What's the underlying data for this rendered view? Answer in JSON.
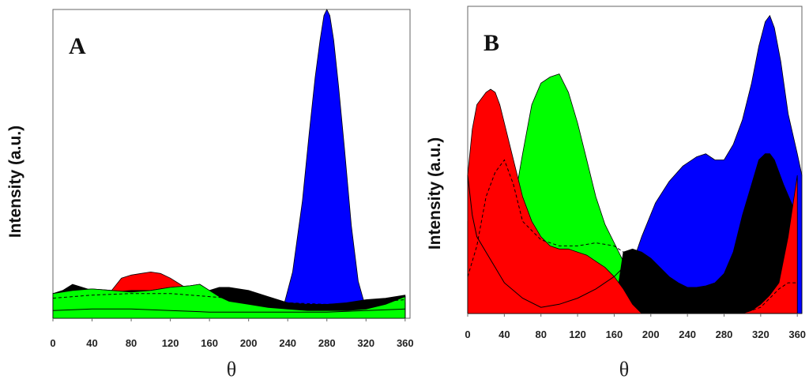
{
  "chart_data": [
    {
      "type": "area",
      "panel_label": "A",
      "xlabel": "θ",
      "ylabel": "Intensity (a.u.)",
      "xlim": [
        0,
        365
      ],
      "ylim": [
        0,
        1
      ],
      "x_ticks": [
        "0",
        "40",
        "80",
        "120",
        "160",
        "200",
        "240",
        "280",
        "320",
        "360"
      ],
      "colors": {
        "red": "#ff0000",
        "green": "#00ff00",
        "blue": "#0000ff",
        "black": "#000000"
      },
      "series": [
        {
          "color": "red",
          "style": "filled",
          "x": [
            0,
            30,
            50,
            60,
            70,
            80,
            90,
            100,
            110,
            120,
            130,
            140,
            150,
            160,
            170,
            180,
            200,
            220,
            240,
            260,
            280,
            300,
            320,
            340,
            360
          ],
          "y": [
            0.02,
            0.02,
            0.03,
            0.09,
            0.13,
            0.14,
            0.145,
            0.15,
            0.145,
            0.13,
            0.11,
            0.09,
            0.07,
            0.06,
            0.05,
            0.05,
            0.04,
            0.03,
            0.02,
            0.02,
            0.02,
            0.02,
            0.03,
            0.04,
            0.05
          ]
        },
        {
          "color": "blue",
          "style": "filled",
          "x": [
            0,
            220,
            235,
            245,
            255,
            262,
            268,
            273,
            277,
            280,
            283,
            287,
            292,
            298,
            305,
            312,
            320,
            330,
            360
          ],
          "y": [
            0.0,
            0.0,
            0.03,
            0.15,
            0.38,
            0.6,
            0.78,
            0.9,
            0.98,
            1.0,
            0.98,
            0.9,
            0.75,
            0.55,
            0.3,
            0.12,
            0.03,
            0.0,
            0.0
          ]
        },
        {
          "color": "green",
          "style": "filled",
          "x": [
            0,
            20,
            40,
            60,
            80,
            100,
            120,
            140,
            150,
            160,
            170,
            180,
            200,
            220,
            240,
            260,
            280,
            300,
            320,
            340,
            360
          ],
          "y": [
            0.08,
            0.09,
            0.095,
            0.09,
            0.085,
            0.09,
            0.1,
            0.105,
            0.11,
            0.09,
            0.07,
            0.055,
            0.045,
            0.035,
            0.03,
            0.025,
            0.025,
            0.025,
            0.03,
            0.045,
            0.07
          ]
        },
        {
          "color": "black",
          "style": "filled",
          "x": [
            0,
            10,
            20,
            30,
            40,
            60,
            80,
            100,
            120,
            140,
            160,
            170,
            180,
            200,
            220,
            240,
            260,
            280,
            300,
            320,
            340,
            360
          ],
          "y": [
            0.08,
            0.09,
            0.11,
            0.1,
            0.09,
            0.085,
            0.09,
            0.09,
            0.09,
            0.085,
            0.09,
            0.1,
            0.1,
            0.09,
            0.07,
            0.05,
            0.045,
            0.045,
            0.05,
            0.06,
            0.065,
            0.075
          ]
        },
        {
          "color": "green",
          "style": "refill",
          "x": [
            0,
            20,
            40,
            60,
            80,
            100,
            120,
            140,
            150,
            160,
            170,
            180,
            200,
            220,
            240,
            260,
            280,
            300,
            320,
            340,
            360
          ],
          "y": [
            0.08,
            0.09,
            0.095,
            0.09,
            0.085,
            0.09,
            0.1,
            0.105,
            0.11,
            0.09,
            0.07,
            0.055,
            0.045,
            0.035,
            0.03,
            0.025,
            0.025,
            0.025,
            0.03,
            0.045,
            0.07
          ]
        },
        {
          "color": "black",
          "style": "dashed",
          "x": [
            0,
            40,
            80,
            120,
            160,
            200,
            240,
            280,
            320,
            360
          ],
          "y": [
            0.065,
            0.075,
            0.08,
            0.08,
            0.07,
            0.06,
            0.05,
            0.045,
            0.05,
            0.06
          ]
        },
        {
          "color": "black",
          "style": "thin",
          "x": [
            0,
            40,
            80,
            120,
            160,
            200,
            240,
            280,
            320,
            360
          ],
          "y": [
            0.025,
            0.03,
            0.03,
            0.025,
            0.02,
            0.02,
            0.02,
            0.02,
            0.025,
            0.03
          ]
        }
      ]
    },
    {
      "type": "area",
      "panel_label": "B",
      "xlabel": "θ",
      "ylabel": "Intensity (a.u.)",
      "xlim": [
        0,
        365
      ],
      "ylim": [
        0,
        1
      ],
      "x_ticks": [
        "0",
        "40",
        "80",
        "120",
        "160",
        "200",
        "240",
        "280",
        "320",
        "360"
      ],
      "colors": {
        "red": "#ff0000",
        "green": "#00ff00",
        "blue": "#0000ff",
        "black": "#000000"
      },
      "series": [
        {
          "color": "blue",
          "style": "filled",
          "x": [
            0,
            160,
            175,
            190,
            205,
            220,
            235,
            250,
            260,
            270,
            280,
            290,
            300,
            310,
            318,
            325,
            330,
            335,
            342,
            350,
            360,
            365
          ],
          "y": [
            0.0,
            0.0,
            0.12,
            0.25,
            0.36,
            0.43,
            0.48,
            0.51,
            0.52,
            0.5,
            0.5,
            0.55,
            0.63,
            0.75,
            0.87,
            0.95,
            0.97,
            0.93,
            0.82,
            0.65,
            0.52,
            0.45
          ]
        },
        {
          "color": "green",
          "style": "filled",
          "x": [
            0,
            40,
            50,
            60,
            70,
            80,
            90,
            100,
            105,
            110,
            120,
            130,
            140,
            150,
            160,
            170,
            180,
            190,
            200,
            210,
            220,
            240,
            260,
            280,
            300,
            320,
            340,
            360
          ],
          "y": [
            0.3,
            0.3,
            0.35,
            0.52,
            0.68,
            0.75,
            0.77,
            0.78,
            0.75,
            0.72,
            0.62,
            0.5,
            0.38,
            0.29,
            0.23,
            0.17,
            0.12,
            0.08,
            0.05,
            0.03,
            0.02,
            0.0,
            0.0,
            0.0,
            0.0,
            0.0,
            0.0,
            0.0
          ]
        },
        {
          "color": "black",
          "style": "filled",
          "x": [
            0,
            160,
            170,
            180,
            190,
            200,
            210,
            220,
            230,
            240,
            250,
            260,
            270,
            280,
            290,
            300,
            310,
            318,
            325,
            330,
            335,
            345,
            355,
            360
          ],
          "y": [
            0.0,
            0.0,
            0.2,
            0.21,
            0.2,
            0.18,
            0.15,
            0.12,
            0.1,
            0.085,
            0.085,
            0.09,
            0.1,
            0.13,
            0.2,
            0.32,
            0.42,
            0.5,
            0.52,
            0.52,
            0.5,
            0.42,
            0.35,
            0.33
          ]
        },
        {
          "color": "red",
          "style": "filled",
          "x": [
            0,
            5,
            10,
            20,
            25,
            30,
            35,
            40,
            50,
            60,
            70,
            80,
            90,
            100,
            110,
            120,
            130,
            140,
            150,
            160,
            170,
            180,
            190,
            200,
            210,
            220,
            240,
            260,
            280,
            300,
            310,
            320,
            330,
            340,
            350,
            355,
            360
          ],
          "y": [
            0.45,
            0.6,
            0.68,
            0.72,
            0.73,
            0.72,
            0.68,
            0.62,
            0.5,
            0.38,
            0.3,
            0.25,
            0.22,
            0.21,
            0.21,
            0.2,
            0.19,
            0.17,
            0.15,
            0.12,
            0.08,
            0.03,
            0.0,
            0.0,
            0.0,
            0.0,
            0.0,
            0.0,
            0.0,
            0.0,
            0.01,
            0.03,
            0.06,
            0.1,
            0.25,
            0.35,
            0.45
          ]
        },
        {
          "color": "black",
          "style": "dashed",
          "x": [
            0,
            10,
            20,
            30,
            40,
            50,
            60,
            80,
            100,
            120,
            140,
            160,
            170,
            180,
            190,
            200,
            220,
            240,
            260,
            280,
            300,
            320,
            330,
            340,
            350,
            360
          ],
          "y": [
            0.12,
            0.22,
            0.38,
            0.46,
            0.5,
            0.42,
            0.3,
            0.24,
            0.22,
            0.22,
            0.23,
            0.22,
            0.2,
            0.15,
            0.1,
            0.05,
            0.02,
            0.0,
            0.0,
            0.0,
            0.0,
            0.02,
            0.05,
            0.08,
            0.1,
            0.1
          ]
        },
        {
          "color": "black",
          "style": "thin",
          "x": [
            0,
            5,
            10,
            20,
            30,
            40,
            60,
            80,
            100,
            120,
            140,
            160,
            170,
            180,
            190,
            200,
            210,
            220,
            240,
            280,
            320,
            360
          ],
          "y": [
            0.45,
            0.32,
            0.25,
            0.2,
            0.15,
            0.1,
            0.05,
            0.02,
            0.03,
            0.05,
            0.08,
            0.12,
            0.15,
            0.17,
            0.14,
            0.08,
            0.03,
            0.0,
            0.0,
            0.0,
            0.0,
            0.0
          ]
        }
      ]
    }
  ]
}
